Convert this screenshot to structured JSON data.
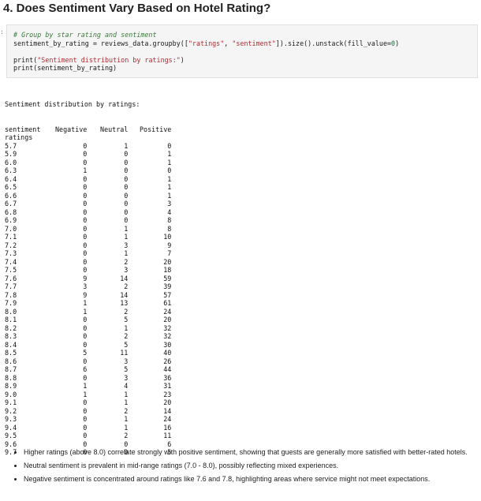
{
  "heading": "4. Does Sentiment Vary Based on Hotel Rating?",
  "prompt_marker": ":",
  "code": {
    "line1_comment": "# Group by star rating and sentiment",
    "line2_prefix": "sentiment_by_rating = reviews_data.groupby([",
    "line2_str1": "\"ratings\"",
    "line2_sep": ", ",
    "line2_str2": "\"sentiment\"",
    "line2_suffix": "]).size().unstack(fill_value=",
    "line2_num": "0",
    "line2_end": ")",
    "line4_prefix": "print(",
    "line4_str": "\"Sentiment distribution by ratings:\"",
    "line4_end": ")",
    "line5": "print(sentiment_by_rating)"
  },
  "output": {
    "title": "Sentiment distribution by ratings:",
    "columns_label": "sentiment",
    "col_negative": "Negative",
    "col_neutral": "Neutral",
    "col_positive": "Positive",
    "index_label": "ratings",
    "rows": [
      {
        "rating": "5.7",
        "neg": "0",
        "neu": "1",
        "pos": "0"
      },
      {
        "rating": "5.9",
        "neg": "0",
        "neu": "0",
        "pos": "1"
      },
      {
        "rating": "6.0",
        "neg": "0",
        "neu": "0",
        "pos": "1"
      },
      {
        "rating": "6.3",
        "neg": "1",
        "neu": "0",
        "pos": "0"
      },
      {
        "rating": "6.4",
        "neg": "0",
        "neu": "0",
        "pos": "1"
      },
      {
        "rating": "6.5",
        "neg": "0",
        "neu": "0",
        "pos": "1"
      },
      {
        "rating": "6.6",
        "neg": "0",
        "neu": "0",
        "pos": "1"
      },
      {
        "rating": "6.7",
        "neg": "0",
        "neu": "0",
        "pos": "3"
      },
      {
        "rating": "6.8",
        "neg": "0",
        "neu": "0",
        "pos": "4"
      },
      {
        "rating": "6.9",
        "neg": "0",
        "neu": "0",
        "pos": "8"
      },
      {
        "rating": "7.0",
        "neg": "0",
        "neu": "1",
        "pos": "8"
      },
      {
        "rating": "7.1",
        "neg": "0",
        "neu": "1",
        "pos": "10"
      },
      {
        "rating": "7.2",
        "neg": "0",
        "neu": "3",
        "pos": "9"
      },
      {
        "rating": "7.3",
        "neg": "0",
        "neu": "1",
        "pos": "7"
      },
      {
        "rating": "7.4",
        "neg": "0",
        "neu": "2",
        "pos": "20"
      },
      {
        "rating": "7.5",
        "neg": "0",
        "neu": "3",
        "pos": "18"
      },
      {
        "rating": "7.6",
        "neg": "9",
        "neu": "14",
        "pos": "59"
      },
      {
        "rating": "7.7",
        "neg": "3",
        "neu": "2",
        "pos": "39"
      },
      {
        "rating": "7.8",
        "neg": "9",
        "neu": "14",
        "pos": "57"
      },
      {
        "rating": "7.9",
        "neg": "1",
        "neu": "13",
        "pos": "61"
      },
      {
        "rating": "8.0",
        "neg": "1",
        "neu": "2",
        "pos": "24"
      },
      {
        "rating": "8.1",
        "neg": "0",
        "neu": "5",
        "pos": "20"
      },
      {
        "rating": "8.2",
        "neg": "0",
        "neu": "1",
        "pos": "32"
      },
      {
        "rating": "8.3",
        "neg": "0",
        "neu": "2",
        "pos": "32"
      },
      {
        "rating": "8.4",
        "neg": "0",
        "neu": "5",
        "pos": "30"
      },
      {
        "rating": "8.5",
        "neg": "5",
        "neu": "11",
        "pos": "40"
      },
      {
        "rating": "8.6",
        "neg": "0",
        "neu": "3",
        "pos": "26"
      },
      {
        "rating": "8.7",
        "neg": "6",
        "neu": "5",
        "pos": "44"
      },
      {
        "rating": "8.8",
        "neg": "0",
        "neu": "3",
        "pos": "36"
      },
      {
        "rating": "8.9",
        "neg": "1",
        "neu": "4",
        "pos": "31"
      },
      {
        "rating": "9.0",
        "neg": "1",
        "neu": "1",
        "pos": "23"
      },
      {
        "rating": "9.1",
        "neg": "0",
        "neu": "1",
        "pos": "20"
      },
      {
        "rating": "9.2",
        "neg": "0",
        "neu": "2",
        "pos": "14"
      },
      {
        "rating": "9.3",
        "neg": "0",
        "neu": "1",
        "pos": "24"
      },
      {
        "rating": "9.4",
        "neg": "0",
        "neu": "1",
        "pos": "16"
      },
      {
        "rating": "9.5",
        "neg": "0",
        "neu": "2",
        "pos": "11"
      },
      {
        "rating": "9.6",
        "neg": "0",
        "neu": "0",
        "pos": "6"
      },
      {
        "rating": "9.7",
        "neg": "0",
        "neu": "0",
        "pos": "5"
      }
    ]
  },
  "notes": [
    "Higher ratings (above 8.0) correlate strongly with positive sentiment, showing that guests are generally more satisfied with better-rated hotels.",
    "Neutral sentiment is prevalent in mid-range ratings (7.0 - 8.0), possibly reflecting mixed experiences.",
    "Negative sentiment is concentrated around ratings like 7.6 and 7.8, highlighting areas where service might not meet expectations."
  ]
}
